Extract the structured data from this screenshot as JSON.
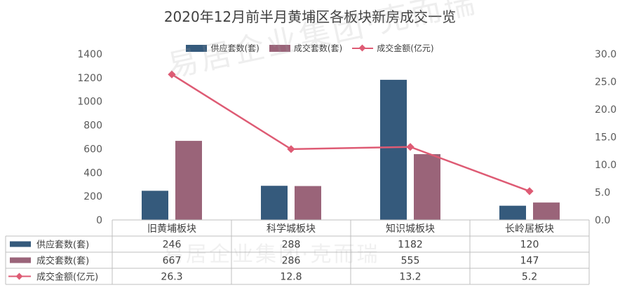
{
  "chart_data": {
    "type": "bar",
    "title": "2020年12月前半月黄埔区各板块新房成交一览",
    "categories": [
      "旧黄埔板块",
      "科学城板块",
      "知识城板块",
      "长岭居板块"
    ],
    "series": [
      {
        "name": "供应套数(套)",
        "kind": "bar",
        "axis": "left",
        "color": "#355a7c",
        "values": [
          246,
          288,
          1182,
          120
        ],
        "labels": [
          "246",
          "288",
          "1182",
          "120"
        ]
      },
      {
        "name": "成交套数(套)",
        "kind": "bar",
        "axis": "left",
        "color": "#9a6479",
        "values": [
          667,
          286,
          555,
          147
        ],
        "labels": [
          "667",
          "286",
          "555",
          "147"
        ]
      },
      {
        "name": "成交金额(亿元)",
        "kind": "line",
        "axis": "right",
        "color": "#de5b74",
        "values": [
          26.3,
          12.8,
          13.2,
          5.2
        ],
        "labels": [
          "26.3",
          "12.8",
          "13.2",
          "5.2"
        ]
      }
    ],
    "y_left": {
      "ylim": [
        0,
        1400
      ],
      "ticks": [
        "0",
        "200",
        "400",
        "600",
        "800",
        "1000",
        "1200",
        "1400"
      ]
    },
    "y_right": {
      "ylim": [
        0,
        30
      ],
      "ticks": [
        "0.0",
        "5.0",
        "10.0",
        "15.0",
        "20.0",
        "25.0",
        "30.0"
      ]
    },
    "legend_position": "top",
    "data_table": true,
    "grid": false
  },
  "watermark": "易居企业集团·克而瑞"
}
